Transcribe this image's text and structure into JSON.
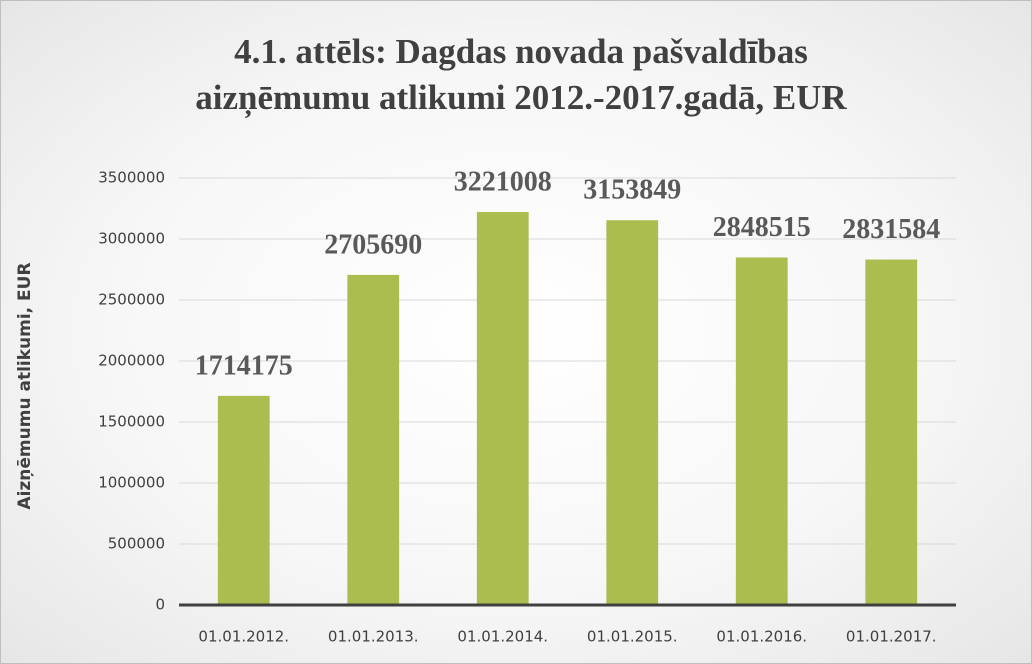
{
  "chart_data": {
    "type": "bar",
    "title": "4.1. attēls: Dagdas novada pašvaldības aizņēmumu atlikumi 2012.-2017.gadā, EUR",
    "y_label": "Aizņēmumu atlikumi, EUR",
    "categories": [
      "01.01.2012.",
      "01.01.2013.",
      "01.01.2014.",
      "01.01.2015.",
      "01.01.2016.",
      "01.01.2017."
    ],
    "values": [
      1714175,
      2705690,
      3221008,
      3153849,
      2848515,
      2831584
    ],
    "color": "#abbd4f",
    "ylim": [
      0,
      3500000
    ],
    "yticks": [
      0,
      500000,
      1000000,
      1500000,
      2000000,
      2500000,
      3000000,
      3500000
    ],
    "grid": true
  }
}
